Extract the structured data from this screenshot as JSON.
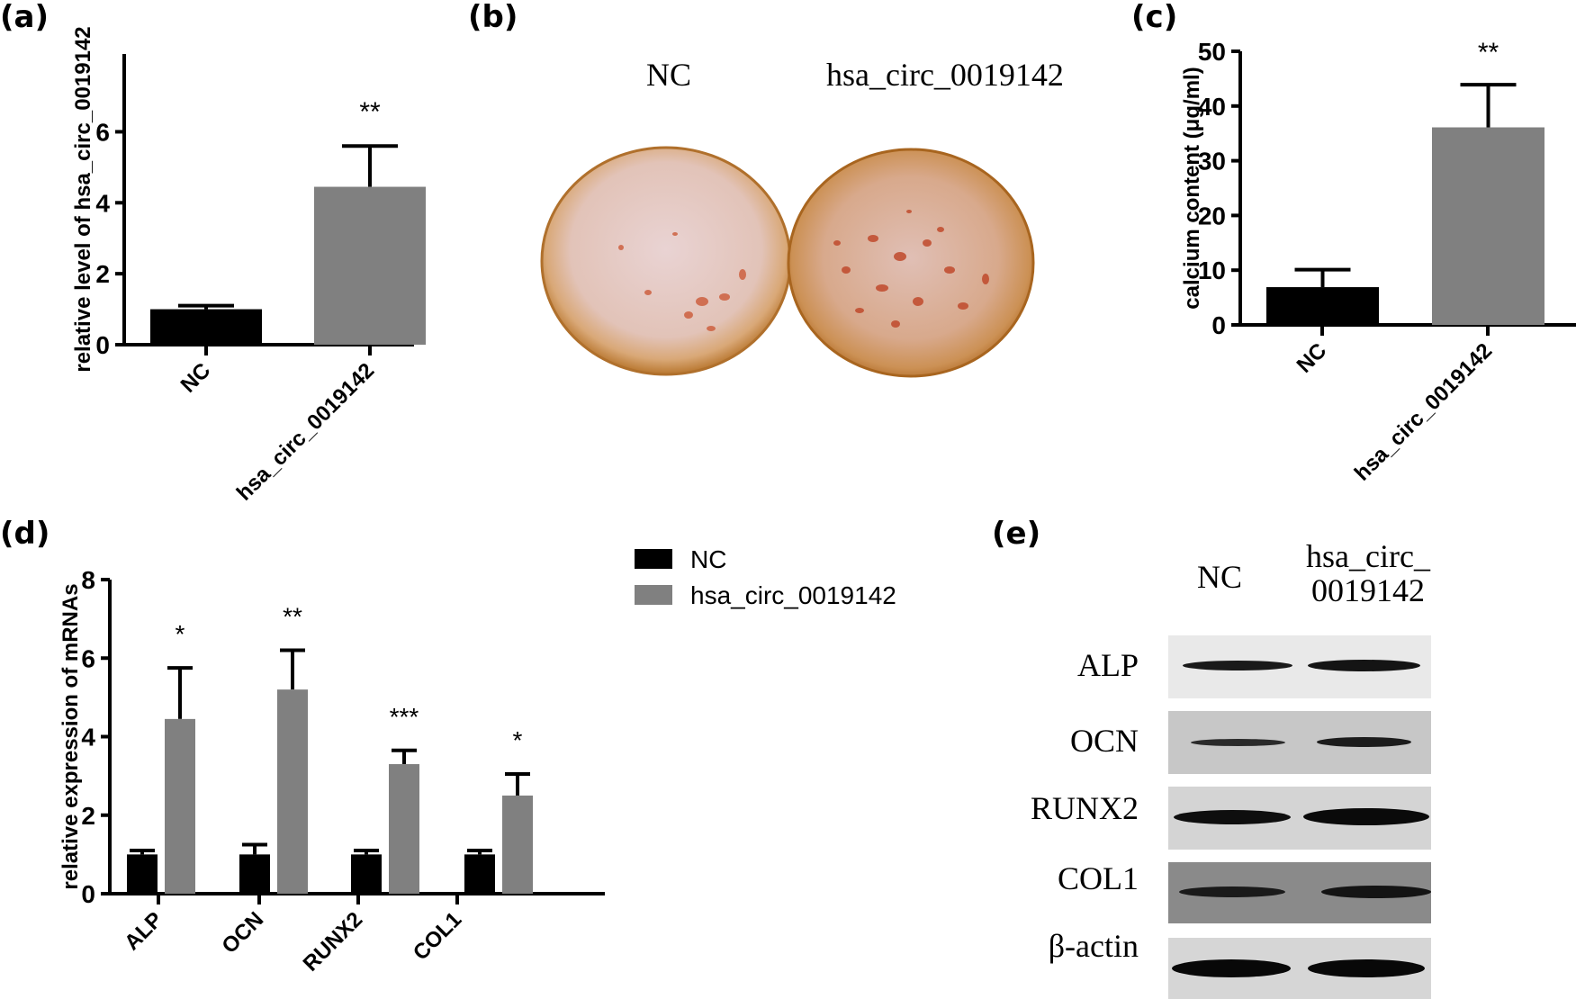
{
  "panels": {
    "a": {
      "label": "(a)"
    },
    "b": {
      "label": "(b)",
      "col_nc": "NC",
      "col_hsa": "hsa_circ_0019142"
    },
    "c": {
      "label": "(c)"
    },
    "d": {
      "label": "(d)"
    },
    "e": {
      "label": "(e)",
      "col_nc": "NC",
      "col_hsa_line1": "hsa_circ_",
      "col_hsa_line2": "0019142",
      "rows": [
        "ALP",
        "OCN",
        "RUNX2",
        "COL1",
        "β-actin"
      ]
    }
  },
  "colors": {
    "nc": "#000000",
    "hsa": "#808080"
  },
  "chart_data": [
    {
      "id": "a",
      "type": "bar",
      "title": "",
      "xlabel": "",
      "ylabel": "relative level of hsa_circ_0019142",
      "categories": [
        "NC",
        "hsa_circ_0019142"
      ],
      "values": [
        1.0,
        4.45
      ],
      "error_upper": [
        1.1,
        5.6
      ],
      "significance": [
        "",
        "**"
      ],
      "yticks": [
        0,
        2,
        4,
        6
      ],
      "ylim": [
        0,
        7
      ],
      "grid": false
    },
    {
      "id": "c",
      "type": "bar",
      "title": "",
      "xlabel": "",
      "ylabel": "calcium content (μg/ml)",
      "categories": [
        "NC",
        "hsa_circ_0019142"
      ],
      "values": [
        6.9,
        36.1
      ],
      "error_upper": [
        10.1,
        43.9
      ],
      "significance": [
        "",
        "**"
      ],
      "yticks": [
        0,
        10,
        20,
        30,
        40,
        50
      ],
      "ylim": [
        0,
        50
      ],
      "grid": false
    },
    {
      "id": "d",
      "type": "bar",
      "title": "",
      "xlabel": "",
      "ylabel": "relative expression of mRNAs",
      "categories": [
        "ALP",
        "OCN",
        "RUNX2",
        "COL1"
      ],
      "series": [
        {
          "name": "NC",
          "values": [
            1.0,
            1.0,
            1.0,
            1.0
          ],
          "error_upper": [
            1.1,
            1.25,
            1.1,
            1.1
          ]
        },
        {
          "name": "hsa_circ_0019142",
          "values": [
            4.45,
            5.2,
            3.3,
            2.5
          ],
          "error_upper": [
            5.75,
            6.2,
            3.65,
            3.05
          ]
        }
      ],
      "significance": [
        "*",
        "**",
        "***",
        "*"
      ],
      "yticks": [
        0,
        2,
        4,
        6,
        8
      ],
      "ylim": [
        0,
        8
      ],
      "legend_position": "right",
      "grid": false
    }
  ]
}
